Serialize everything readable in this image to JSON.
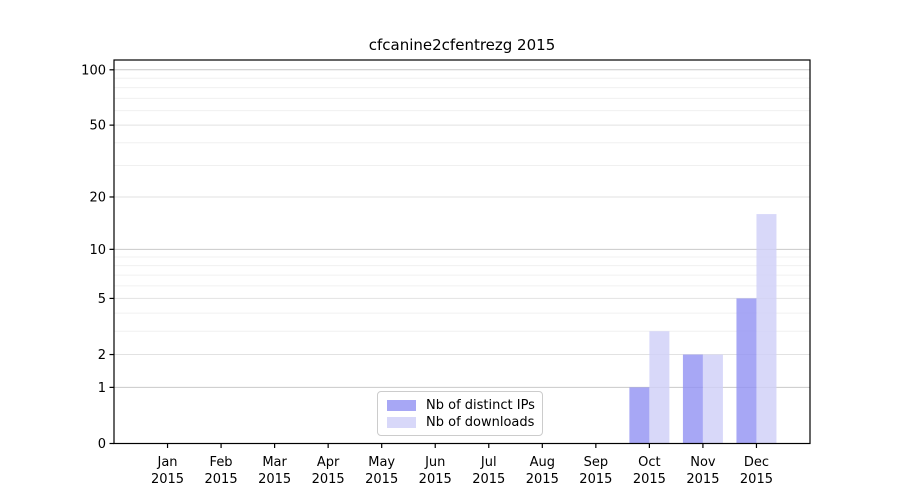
{
  "chart_data": {
    "type": "bar",
    "title": "cfcanine2cfentrezg 2015",
    "categories": [
      "Jan",
      "Feb",
      "Mar",
      "Apr",
      "May",
      "Jun",
      "Jul",
      "Aug",
      "Sep",
      "Oct",
      "Nov",
      "Dec"
    ],
    "x_year_label": "2015",
    "series": [
      {
        "name": "Nb of distinct IPs",
        "color": "#9494f3",
        "values": [
          0,
          0,
          0,
          0,
          0,
          0,
          0,
          0,
          0,
          1,
          2,
          5
        ]
      },
      {
        "name": "Nb of downloads",
        "color": "#cfcff8",
        "values": [
          0,
          0,
          0,
          0,
          0,
          0,
          0,
          0,
          0,
          3,
          2,
          16
        ]
      }
    ],
    "bar_alpha": 0.82,
    "yscale": "log1p",
    "yticks": [
      0,
      1,
      2,
      5,
      10,
      20,
      50,
      100
    ],
    "ylim": [
      0,
      113
    ],
    "grid": {
      "decade_lines": [
        1,
        10,
        100
      ],
      "labeled_lines": [
        2,
        5,
        20,
        50
      ],
      "minor_lines": [
        3,
        4,
        6,
        7,
        8,
        9,
        30,
        40,
        60,
        70,
        80,
        90
      ],
      "decade_color": "#c9c9c9",
      "labeled_color": "#e2e2e2",
      "minor_color": "#f0f0f0"
    },
    "legend_position": "lower center",
    "axis_color": "#000000",
    "background": "#ffffff"
  }
}
